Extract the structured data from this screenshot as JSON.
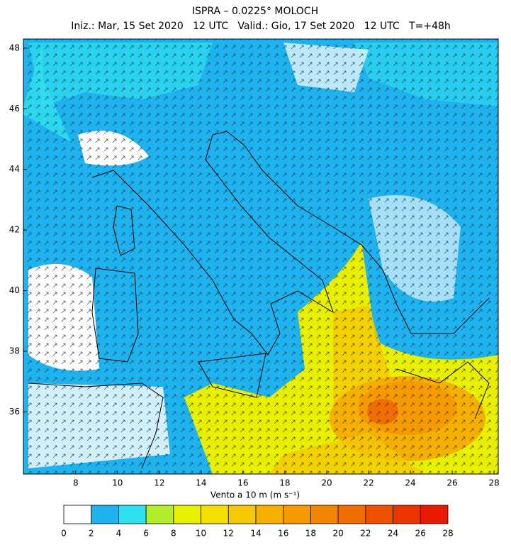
{
  "header": {
    "title": "ISPRA – 0.0225° MOLOCH",
    "subtitle": "Iniz.: Mar, 15 Set 2020   12 UTC   Valid.: Gio, 17 Set 2020   12 UTC   T=+48h"
  },
  "map": {
    "lonlim": [
      5.5,
      28.2
    ],
    "latlim": [
      33.95,
      48.3
    ],
    "lon_ticks": [
      8,
      10,
      12,
      14,
      16,
      18,
      20,
      22,
      24,
      26,
      28
    ],
    "lat_ticks": [
      36,
      38,
      40,
      42,
      44,
      46,
      48
    ]
  },
  "colorbar": {
    "label": "Vento a 10 m (m s⁻¹)",
    "ticks": [
      0,
      2,
      4,
      6,
      8,
      10,
      12,
      14,
      16,
      18,
      20,
      22,
      24,
      26,
      28
    ],
    "colors": [
      "#ffffff",
      "#1eb2ee",
      "#2fe0f0",
      "#b4ee2a",
      "#e8f000",
      "#f4e000",
      "#f5c800",
      "#f5b000",
      "#f59a00",
      "#f38600",
      "#f06e00",
      "#ee5000",
      "#ec3400",
      "#ea1a00"
    ]
  }
}
